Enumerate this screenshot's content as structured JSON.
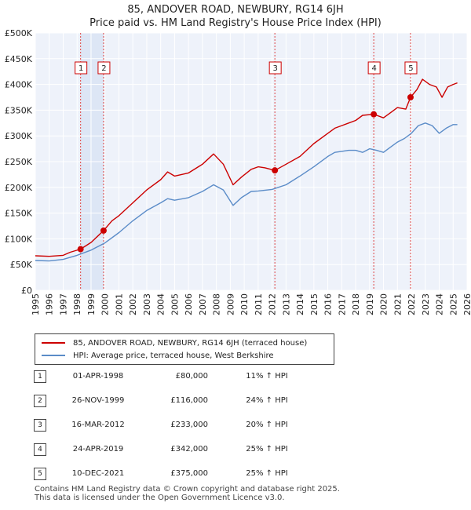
{
  "chart_data": {
    "type": "line",
    "title": "85, ANDOVER ROAD, NEWBURY, RG14 6JH",
    "subtitle": "Price paid vs. HM Land Registry's House Price Index (HPI)",
    "y_ticks": [
      "£0",
      "£50K",
      "£100K",
      "£150K",
      "£200K",
      "£250K",
      "£300K",
      "£350K",
      "£400K",
      "£450K",
      "£500K"
    ],
    "x_ticks": [
      "1995",
      "1996",
      "1997",
      "1998",
      "1999",
      "2000",
      "2001",
      "2002",
      "2003",
      "2004",
      "2005",
      "2006",
      "2007",
      "2008",
      "2009",
      "2010",
      "2011",
      "2012",
      "2013",
      "2014",
      "2015",
      "2016",
      "2017",
      "2018",
      "2019",
      "2020",
      "2021",
      "2022",
      "2023",
      "2024",
      "2025",
      "2026"
    ],
    "xlim": [
      1995,
      2026
    ],
    "ylim": [
      0,
      500000
    ],
    "grid": true,
    "colors": {
      "price_line": "#cc0000",
      "hpi_line": "#5b8cc8",
      "band": "#e8eef8",
      "vline": "#dd4444"
    },
    "series": [
      {
        "name": "85, ANDOVER ROAD, NEWBURY, RG14 6JH (terraced house)",
        "x": [
          1995.0,
          1996.0,
          1997.0,
          1997.5,
          1998.25,
          1999.0,
          1999.9,
          2000.5,
          2001.0,
          2002.0,
          2003.0,
          2004.0,
          2004.5,
          2005.0,
          2006.0,
          2007.0,
          2007.8,
          2008.5,
          2009.2,
          2009.8,
          2010.5,
          2011.0,
          2011.5,
          2012.2,
          2013.0,
          2014.0,
          2015.0,
          2016.0,
          2016.5,
          2017.0,
          2017.5,
          2018.0,
          2018.5,
          2019.3,
          2020.0,
          2020.5,
          2021.0,
          2021.6,
          2021.94,
          2022.4,
          2022.8,
          2023.3,
          2023.8,
          2024.2,
          2024.6,
          2025.0,
          2025.3
        ],
        "y": [
          67000,
          66000,
          68000,
          74000,
          80000,
          93000,
          116000,
          135000,
          145000,
          170000,
          195000,
          215000,
          230000,
          222000,
          228000,
          245000,
          265000,
          245000,
          205000,
          220000,
          235000,
          240000,
          238000,
          233000,
          245000,
          260000,
          285000,
          305000,
          315000,
          320000,
          325000,
          330000,
          340000,
          342000,
          335000,
          345000,
          355000,
          352000,
          375000,
          390000,
          410000,
          400000,
          395000,
          375000,
          395000,
          400000,
          403000
        ]
      },
      {
        "name": "HPI: Average price, terraced house, West Berkshire",
        "x": [
          1995.0,
          1996.0,
          1997.0,
          1998.0,
          1999.0,
          2000.0,
          2001.0,
          2002.0,
          2003.0,
          2004.0,
          2004.5,
          2005.0,
          2006.0,
          2007.0,
          2007.8,
          2008.5,
          2009.2,
          2009.8,
          2010.5,
          2011.0,
          2012.0,
          2013.0,
          2014.0,
          2015.0,
          2016.0,
          2016.5,
          2017.0,
          2017.5,
          2018.0,
          2018.5,
          2019.0,
          2019.5,
          2020.0,
          2020.5,
          2021.0,
          2021.5,
          2022.0,
          2022.5,
          2023.0,
          2023.5,
          2024.0,
          2024.5,
          2025.0,
          2025.3
        ],
        "y": [
          58000,
          57000,
          60000,
          68000,
          78000,
          92000,
          112000,
          135000,
          155000,
          170000,
          178000,
          175000,
          180000,
          192000,
          205000,
          195000,
          165000,
          180000,
          192000,
          193000,
          196000,
          205000,
          222000,
          240000,
          260000,
          268000,
          270000,
          272000,
          272000,
          268000,
          275000,
          272000,
          268000,
          278000,
          288000,
          295000,
          305000,
          320000,
          325000,
          320000,
          305000,
          315000,
          322000,
          322000
        ]
      }
    ],
    "sales_markers": [
      {
        "label": "1",
        "x": 1998.25,
        "y": 80000
      },
      {
        "label": "2",
        "x": 1999.9,
        "y": 116000
      },
      {
        "label": "3",
        "x": 2012.2,
        "y": 233000
      },
      {
        "label": "4",
        "x": 2019.3,
        "y": 342000
      },
      {
        "label": "5",
        "x": 2021.94,
        "y": 375000
      }
    ],
    "shaded_band": [
      1998.25,
      1999.9
    ]
  },
  "legend": {
    "price_label": "85, ANDOVER ROAD, NEWBURY, RG14 6JH (terraced house)",
    "hpi_label": "HPI: Average price, terraced house, West Berkshire"
  },
  "sales": [
    {
      "num": "1",
      "date": "01-APR-1998",
      "price": "£80,000",
      "hpi": "11% ↑ HPI"
    },
    {
      "num": "2",
      "date": "26-NOV-1999",
      "price": "£116,000",
      "hpi": "24% ↑ HPI"
    },
    {
      "num": "3",
      "date": "16-MAR-2012",
      "price": "£233,000",
      "hpi": "20% ↑ HPI"
    },
    {
      "num": "4",
      "date": "24-APR-2019",
      "price": "£342,000",
      "hpi": "25% ↑ HPI"
    },
    {
      "num": "5",
      "date": "10-DEC-2021",
      "price": "£375,000",
      "hpi": "25% ↑ HPI"
    }
  ],
  "footer": {
    "line1": "Contains HM Land Registry data © Crown copyright and database right 2025.",
    "line2": "This data is licensed under the Open Government Licence v3.0."
  }
}
